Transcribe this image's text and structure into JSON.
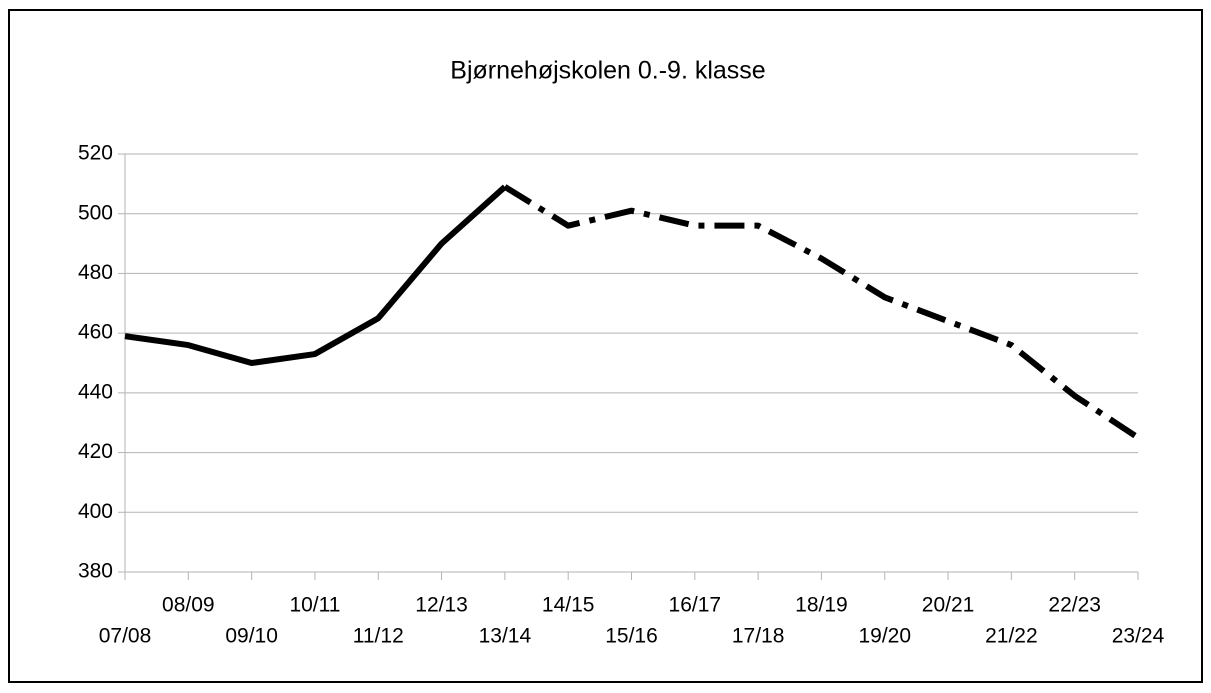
{
  "chart_data": {
    "type": "line",
    "title": "Bjørnehøjskolen 0.-9. klasse",
    "categories": [
      "07/08",
      "08/09",
      "09/10",
      "10/11",
      "11/12",
      "12/13",
      "13/14",
      "14/15",
      "15/16",
      "16/17",
      "17/18",
      "18/19",
      "19/20",
      "20/21",
      "21/22",
      "22/23",
      "23/24"
    ],
    "series": [
      {
        "color": "#000000",
        "dash": "solid",
        "values": [
          459,
          456,
          450,
          453,
          465,
          490,
          509,
          null,
          null,
          null,
          null,
          null,
          null,
          null,
          null,
          null,
          null
        ]
      },
      {
        "color": "#000000",
        "dash": "dashdot",
        "values": [
          null,
          null,
          null,
          null,
          null,
          null,
          509,
          496,
          501,
          496,
          496,
          485,
          472,
          464,
          456,
          439,
          425
        ]
      }
    ],
    "ylim": [
      380,
      520
    ],
    "yticks": [
      380,
      400,
      420,
      440,
      460,
      480,
      500,
      520
    ],
    "grid": true
  }
}
